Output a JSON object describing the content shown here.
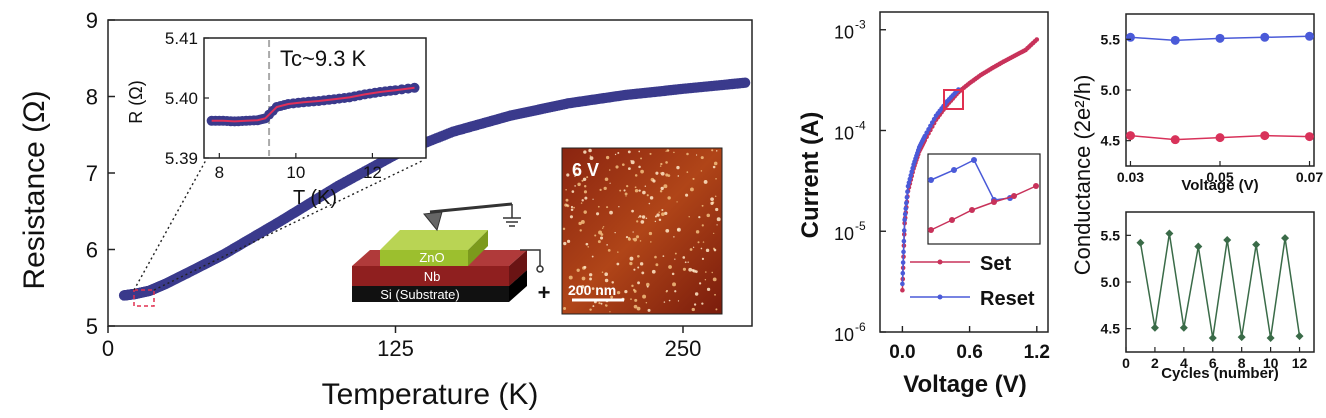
{
  "chart_data": [
    {
      "type": "scatter",
      "xlabel": "Temperature (K)",
      "ylabel": "Resistance (Ω)",
      "xlim": [
        0,
        280
      ],
      "ylim": [
        5,
        9
      ],
      "xticks": [
        "0",
        "125",
        "250"
      ],
      "yticks": [
        "5",
        "6",
        "7",
        "8",
        "9"
      ],
      "marker_color": "#3a3a8c",
      "x": [
        7,
        12,
        18,
        25,
        35,
        50,
        75,
        100,
        125,
        150,
        175,
        200,
        225,
        250,
        277
      ],
      "y": [
        5.4,
        5.42,
        5.46,
        5.55,
        5.7,
        5.93,
        6.37,
        6.83,
        7.24,
        7.54,
        7.75,
        7.91,
        8.02,
        8.1,
        8.18
      ],
      "inset_plot": {
        "annotation": "Tc~9.3 K",
        "xlabel": "T (K)",
        "ylabel": "R (Ω)",
        "xlim": [
          7.6,
          13.4
        ],
        "ylim": [
          5.39,
          5.41
        ],
        "xticks": [
          "8",
          "10",
          "12"
        ],
        "yticks": [
          "5.39",
          "5.40",
          "5.41"
        ],
        "tc_line": 9.3,
        "fit_color": "#e0305a",
        "x": [
          7.8,
          8.1,
          8.4,
          8.7,
          9.0,
          9.2,
          9.5,
          9.8,
          10.2,
          10.6,
          11.0,
          11.4,
          11.8,
          12.2,
          12.6,
          13.1
        ],
        "y": [
          5.3962,
          5.3962,
          5.3961,
          5.3962,
          5.3963,
          5.3966,
          5.3985,
          5.399,
          5.3993,
          5.3995,
          5.3998,
          5.4001,
          5.4006,
          5.401,
          5.4013,
          5.4017
        ]
      },
      "device_schematic": {
        "layers": [
          "ZnO",
          "Nb",
          "Si (Substrate)"
        ],
        "polarity": "+",
        "colors": [
          "#a6c93a",
          "#8f1f1f",
          "#111111"
        ]
      },
      "afm_image": {
        "label": "6 V",
        "scale_bar": "200 nm"
      }
    },
    {
      "type": "line",
      "xlabel": "Voltage (V)",
      "ylabel": "Current (A)",
      "y_scale": "log",
      "xlim": [
        -0.2,
        1.3
      ],
      "ylim": [
        1e-06,
        0.0015
      ],
      "xticks": [
        "0.0",
        "0.6",
        "1.2"
      ],
      "yticks": [
        "10",
        "10",
        "10",
        "10"
      ],
      "ytick_exps": [
        "-6",
        "-5",
        "-4",
        "-3"
      ],
      "series": [
        {
          "name": "Set",
          "color": "#c8325a",
          "x": [
            0.0,
            0.02,
            0.05,
            0.1,
            0.15,
            0.2,
            0.3,
            0.4,
            0.5,
            0.6,
            0.7,
            0.8,
            0.9,
            1.0,
            1.1,
            1.2
          ],
          "y": [
            2.6e-06,
            1.2e-05,
            2.5e-05,
            4.2e-05,
            6.2e-05,
            8e-05,
            0.000128,
            0.00018,
            0.00024,
            0.000295,
            0.000355,
            0.000415,
            0.00048,
            0.00055,
            0.00063,
            0.0008
          ]
        },
        {
          "name": "Reset",
          "color": "#4a5ad8",
          "x": [
            0.0,
            0.02,
            0.05,
            0.1,
            0.15,
            0.2,
            0.3,
            0.4,
            0.5
          ],
          "y": [
            3e-06,
            1.3e-05,
            2.8e-05,
            4.6e-05,
            6.8e-05,
            8.8e-05,
            0.00014,
            0.000195,
            0.000255
          ]
        }
      ]
    },
    {
      "type": "scatter",
      "xlabel": "Voltage (V)",
      "ylabel": "Conductance (2e²/h)",
      "xlim": [
        0.029,
        0.071
      ],
      "ylim": [
        4.25,
        5.75
      ],
      "xticks": [
        "0.03",
        "0.05",
        "0.07"
      ],
      "yticks": [
        "4.5",
        "5.0",
        "5.5"
      ],
      "series": [
        {
          "name": "",
          "color": "#4a5ad8",
          "x": [
            0.03,
            0.04,
            0.05,
            0.06,
            0.07
          ],
          "y": [
            5.52,
            5.49,
            5.51,
            5.52,
            5.53
          ]
        },
        {
          "name": "",
          "color": "#d8325a",
          "x": [
            0.03,
            0.04,
            0.05,
            0.06,
            0.07
          ],
          "y": [
            4.55,
            4.51,
            4.53,
            4.55,
            4.54
          ]
        }
      ]
    },
    {
      "type": "line",
      "xlabel": "Cycles (number)",
      "ylabel": "Conductance (2e²/h)",
      "xlim": [
        0,
        13
      ],
      "ylim": [
        4.25,
        5.75
      ],
      "xticks": [
        "0",
        "2",
        "4",
        "6",
        "8",
        "10",
        "12"
      ],
      "yticks": [
        "4.5",
        "5.0",
        "5.5"
      ],
      "color": "#3a6b48",
      "x": [
        1,
        2,
        3,
        4,
        5,
        6,
        7,
        8,
        9,
        10,
        11,
        12
      ],
      "y": [
        5.42,
        4.51,
        5.52,
        4.51,
        5.38,
        4.4,
        5.45,
        4.41,
        5.4,
        4.4,
        5.47,
        4.42
      ]
    }
  ]
}
